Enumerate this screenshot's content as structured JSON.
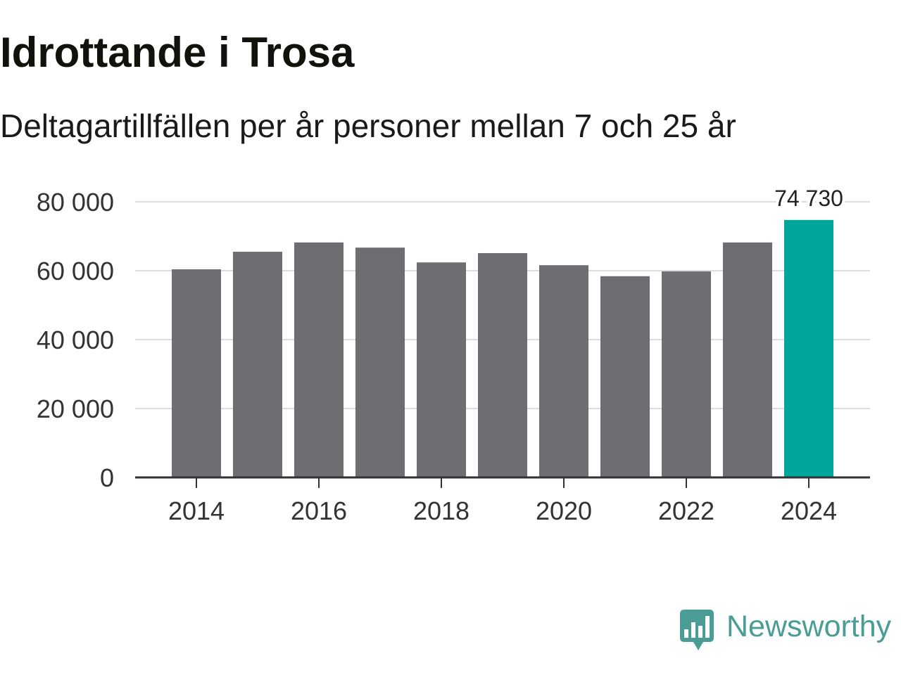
{
  "chart_data": {
    "type": "bar",
    "title": "Idrottande i Trosa",
    "subtitle": "Deltagartillfällen per år personer mellan 7 och 25 år",
    "xlabel": "",
    "ylabel": "",
    "categories": [
      2014,
      2015,
      2016,
      2017,
      2018,
      2019,
      2020,
      2021,
      2022,
      2023,
      2024
    ],
    "values": [
      60400,
      65500,
      68200,
      66700,
      62400,
      65100,
      61600,
      58400,
      59800,
      68200,
      74730
    ],
    "highlight_category": 2024,
    "data_labels": [
      {
        "category": 2024,
        "text": "74 730"
      }
    ],
    "xlim": [
      2013,
      2025
    ],
    "ylim": [
      0,
      80000
    ],
    "x_ticks": [
      2014,
      2016,
      2018,
      2020,
      2022,
      2024
    ],
    "x_tick_labels": [
      "2014",
      "2016",
      "2018",
      "2020",
      "2022",
      "2024"
    ],
    "y_ticks": [
      0,
      20000,
      40000,
      60000,
      80000
    ],
    "y_tick_labels": [
      "0",
      "20 000",
      "40 000",
      "60 000",
      "80 000"
    ],
    "grid": true
  },
  "branding": {
    "logo_text": "Newsworthy",
    "logo_icon": "bar-chart-speech-bubble-icon"
  },
  "colors": {
    "bar": "#6e6d72",
    "highlight": "#00a59b",
    "grid": "#dcdcdc",
    "axis": "#333333",
    "title": "#12120d",
    "brand": "#4a9d95"
  }
}
